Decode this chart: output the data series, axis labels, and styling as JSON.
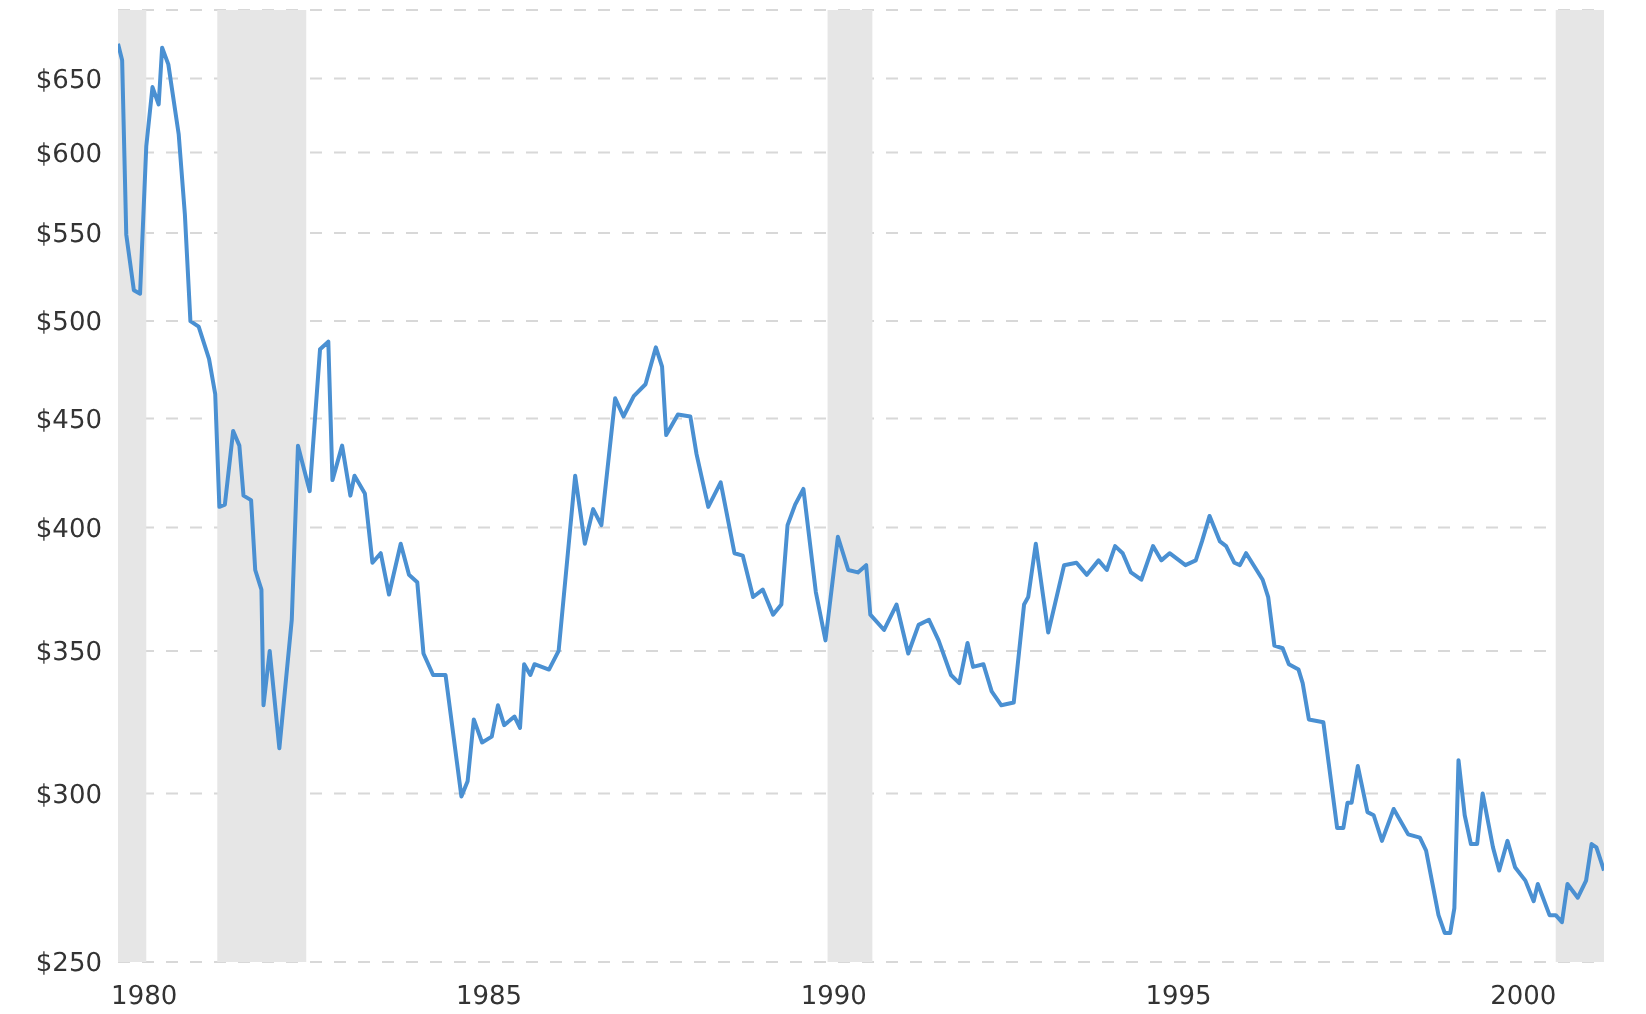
{
  "chart_data": {
    "type": "line",
    "log": "y",
    "grid": "y",
    "marker": "none",
    "line_style": "solid",
    "xlim": [
      1979.62,
      2001.17
    ],
    "xticks": [
      1980,
      1985,
      1990,
      1995,
      2000
    ],
    "ylim": [
      250,
      700
    ],
    "yticks": [
      {
        "value": 250,
        "label": "$250"
      },
      {
        "value": 300,
        "label": "$300"
      },
      {
        "value": 350,
        "label": "$350"
      },
      {
        "value": 400,
        "label": "$400"
      },
      {
        "value": 450,
        "label": "$450"
      },
      {
        "value": 500,
        "label": "$500"
      },
      {
        "value": 550,
        "label": "$550"
      },
      {
        "value": 600,
        "label": "$600"
      },
      {
        "value": 650,
        "label": "$650"
      }
    ],
    "bands": [
      {
        "axis": "x",
        "from": 1979.62,
        "to": 1980.03,
        "color": "#e6e6e6"
      },
      {
        "axis": "x",
        "from": 1981.06,
        "to": 1982.35,
        "color": "#e6e6e6"
      },
      {
        "axis": "x",
        "from": 1989.91,
        "to": 1990.56,
        "color": "#e6e6e6"
      },
      {
        "axis": "x",
        "from": 2000.47,
        "to": 2001.17,
        "color": "#e6e6e6"
      }
    ],
    "series": [
      {
        "color": "#4a90d2",
        "x": [
          1979.62,
          1979.68,
          1979.74,
          1979.85,
          1979.94,
          1980.03,
          1980.12,
          1980.21,
          1980.26,
          1980.35,
          1980.5,
          1980.59,
          1980.67,
          1980.79,
          1980.94,
          1981.03,
          1981.09,
          1981.17,
          1981.29,
          1981.38,
          1981.44,
          1981.55,
          1981.61,
          1981.7,
          1981.73,
          1981.82,
          1981.96,
          1982.14,
          1982.23,
          1982.4,
          1982.55,
          1982.67,
          1982.73,
          1982.87,
          1982.99,
          1983.05,
          1983.2,
          1983.31,
          1983.43,
          1983.55,
          1983.72,
          1983.84,
          1983.96,
          1984.05,
          1984.19,
          1984.37,
          1984.6,
          1984.69,
          1984.78,
          1984.9,
          1985.04,
          1985.13,
          1985.22,
          1985.37,
          1985.45,
          1985.51,
          1985.6,
          1985.66,
          1985.87,
          1986.01,
          1986.25,
          1986.39,
          1986.51,
          1986.63,
          1986.83,
          1986.95,
          1987.1,
          1987.27,
          1987.42,
          1987.51,
          1987.57,
          1987.74,
          1987.92,
          1988.01,
          1988.18,
          1988.36,
          1988.56,
          1988.68,
          1988.83,
          1988.97,
          1989.12,
          1989.24,
          1989.33,
          1989.44,
          1989.56,
          1989.74,
          1989.88,
          1990.06,
          1990.21,
          1990.35,
          1990.47,
          1990.53,
          1990.73,
          1990.91,
          1991.08,
          1991.23,
          1991.38,
          1991.52,
          1991.7,
          1991.82,
          1991.94,
          1992.02,
          1992.17,
          1992.29,
          1992.43,
          1992.61,
          1992.76,
          1992.82,
          1992.93,
          1993.11,
          1993.34,
          1993.52,
          1993.67,
          1993.84,
          1993.96,
          1994.08,
          1994.19,
          1994.31,
          1994.46,
          1994.63,
          1994.75,
          1994.87,
          1995.1,
          1995.25,
          1995.34,
          1995.45,
          1995.6,
          1995.69,
          1995.81,
          1995.89,
          1995.98,
          1996.22,
          1996.3,
          1996.39,
          1996.51,
          1996.6,
          1996.74,
          1996.8,
          1996.89,
          1997.1,
          1997.3,
          1997.39,
          1997.45,
          1997.51,
          1997.6,
          1997.74,
          1997.83,
          1997.95,
          1998.12,
          1998.33,
          1998.5,
          1998.59,
          1998.77,
          1998.86,
          1998.94,
          1999.0,
          1999.06,
          1999.15,
          1999.24,
          1999.33,
          1999.41,
          1999.56,
          1999.65,
          1999.77,
          1999.88,
          2000.03,
          2000.15,
          2000.21,
          2000.38,
          2000.47,
          2000.56,
          2000.64,
          2000.79,
          2000.91,
          2000.99,
          2001.06,
          2001.17
        ],
        "values": [
          675,
          663,
          549,
          517,
          515,
          604,
          644,
          632,
          672,
          660,
          612,
          561,
          500,
          497,
          480,
          462,
          409,
          410,
          444,
          437,
          414,
          412,
          382,
          374,
          330,
          350,
          315,
          362,
          437,
          416,
          485,
          489,
          421,
          437,
          414,
          423,
          415,
          385,
          389,
          372,
          393,
          380,
          377,
          349,
          341,
          341,
          299,
          304,
          325,
          317,
          319,
          330,
          323,
          326,
          322,
          345,
          341,
          345,
          343,
          350,
          423,
          393,
          408,
          401,
          460,
          451,
          461,
          467,
          486,
          476,
          442,
          452,
          451,
          433,
          409,
          420,
          389,
          388,
          371,
          374,
          364,
          368,
          401,
          410,
          417,
          373,
          354,
          396,
          382,
          381,
          384,
          364,
          358,
          368,
          349,
          360,
          362,
          354,
          341,
          338,
          353,
          344,
          345,
          335,
          330,
          331,
          368,
          371,
          393,
          357,
          384,
          385,
          380,
          386,
          382,
          392,
          389,
          381,
          378,
          392,
          386,
          389,
          384,
          386,
          394,
          405,
          394,
          392,
          385,
          384,
          389,
          378,
          371,
          352,
          351,
          345,
          343,
          338,
          325,
          324,
          289,
          289,
          297,
          297,
          309,
          294,
          293,
          285,
          295,
          287,
          286,
          282,
          263,
          258,
          258,
          265,
          311,
          293,
          284,
          284,
          300,
          283,
          276,
          285,
          277,
          273,
          267,
          272,
          263,
          263,
          261,
          272,
          268,
          273,
          284,
          283,
          276
        ]
      }
    ]
  }
}
